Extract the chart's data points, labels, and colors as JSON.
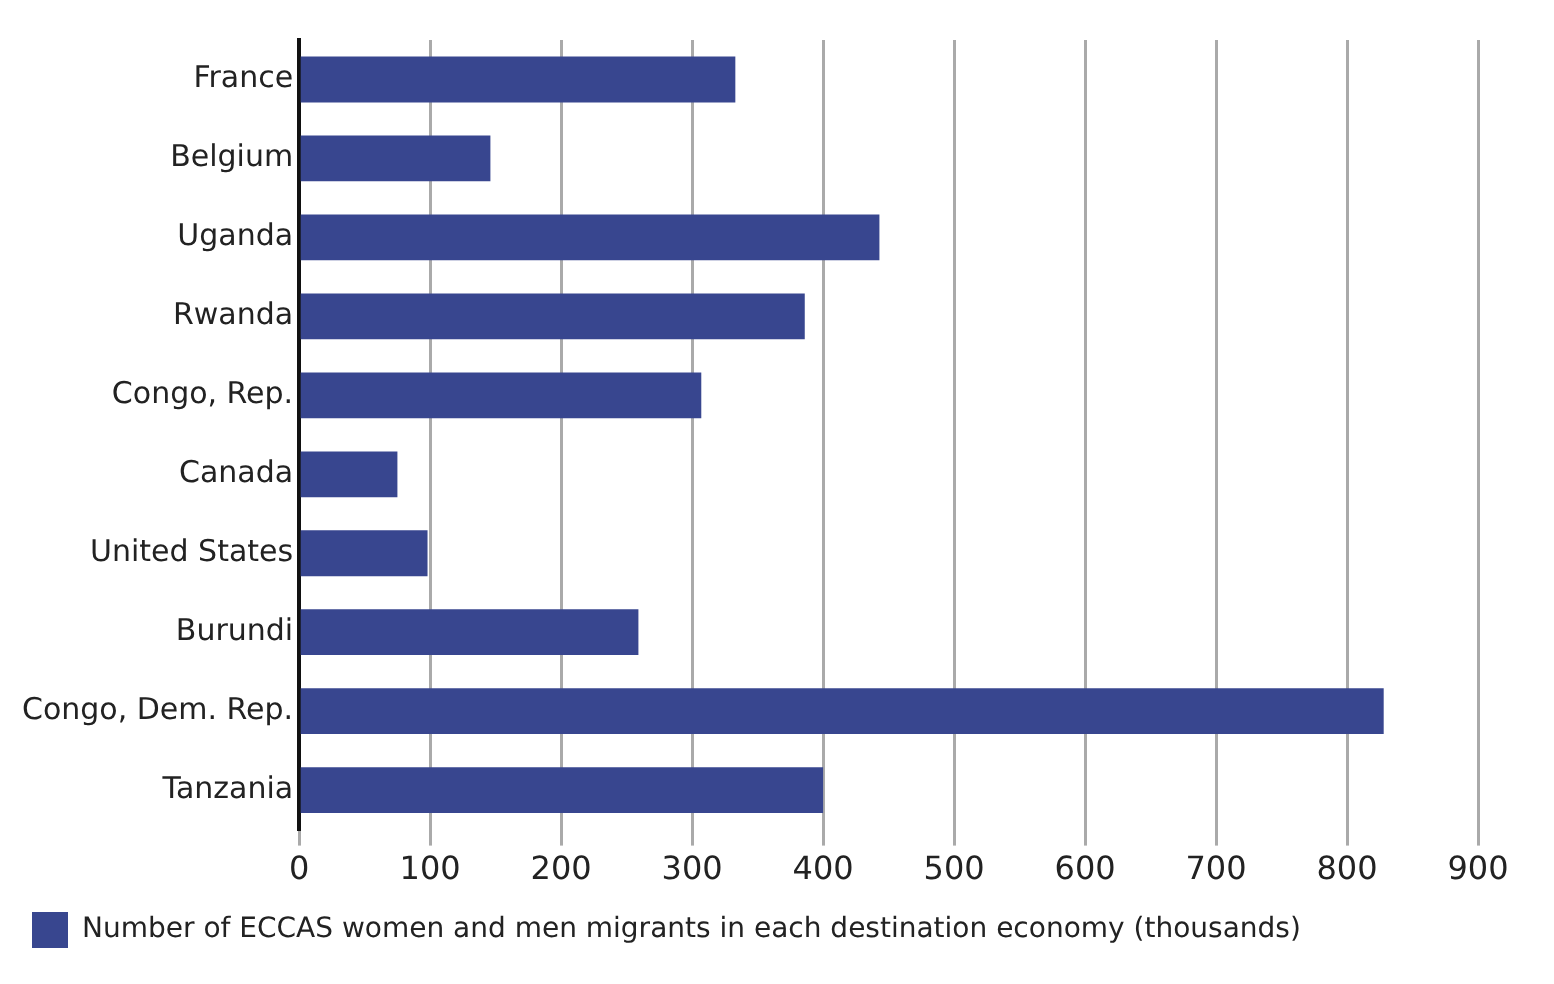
{
  "chart_data": {
    "type": "bar",
    "orientation": "horizontal",
    "categories": [
      "France",
      "Belgium",
      "Uganda",
      "Rwanda",
      "Congo, Rep.",
      "Canada",
      "United States",
      "Burundi",
      "Congo, Dem. Rep.",
      "Tanzania"
    ],
    "series": [
      {
        "name": "Number of ECCAS women and men migrants in each destination economy (thousands)",
        "color": "#38468f",
        "values": [
          333,
          146,
          443,
          386,
          307,
          75,
          98,
          259,
          828,
          400
        ]
      }
    ],
    "xlim": [
      0,
      900
    ],
    "xticks": [
      0,
      100,
      200,
      300,
      400,
      500,
      600,
      700,
      800,
      900
    ],
    "grid": "x",
    "legend": "bottom left"
  }
}
